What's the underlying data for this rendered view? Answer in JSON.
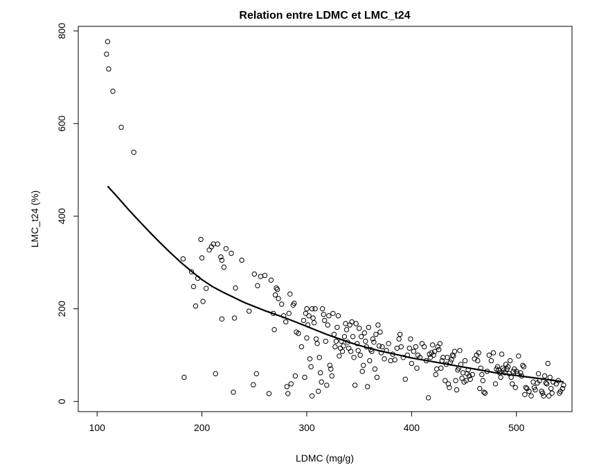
{
  "chart_data": {
    "type": "scatter",
    "title": "Relation entre LDMC et LMC_t24",
    "xlabel": "LDMC (mg/g)",
    "ylabel": "LMC_t24 (%)",
    "xlim": [
      82,
      553
    ],
    "ylim": [
      -22,
      810
    ],
    "xticks": [
      "100",
      "200",
      "300",
      "400",
      "500"
    ],
    "yticks": [
      "0",
      "200",
      "400",
      "600",
      "800"
    ],
    "grid": false,
    "legend": "none",
    "colors": {
      "points": "#000000",
      "curve": "#000000",
      "frame": "#000000"
    },
    "points": [
      [
        109,
        750
      ],
      [
        110,
        777
      ],
      [
        111,
        718
      ],
      [
        115,
        670
      ],
      [
        123,
        592
      ],
      [
        135,
        538
      ],
      [
        182,
        308
      ],
      [
        183,
        52
      ],
      [
        190,
        280
      ],
      [
        192,
        248
      ],
      [
        194,
        206
      ],
      [
        196,
        266
      ],
      [
        199,
        350
      ],
      [
        200,
        310
      ],
      [
        201,
        216
      ],
      [
        204,
        244
      ],
      [
        207,
        327
      ],
      [
        209,
        334
      ],
      [
        211,
        340
      ],
      [
        213,
        60
      ],
      [
        215,
        340
      ],
      [
        218,
        312
      ],
      [
        219,
        305
      ],
      [
        219,
        178
      ],
      [
        221,
        290
      ],
      [
        223,
        330
      ],
      [
        228,
        320
      ],
      [
        230,
        20
      ],
      [
        231,
        180
      ],
      [
        232,
        245
      ],
      [
        238,
        305
      ],
      [
        245,
        195
      ],
      [
        249,
        36
      ],
      [
        250,
        275
      ],
      [
        252,
        60
      ],
      [
        253,
        250
      ],
      [
        256,
        270
      ],
      [
        260,
        272
      ],
      [
        264,
        17
      ],
      [
        266,
        262
      ],
      [
        268,
        190
      ],
      [
        269,
        155
      ],
      [
        270,
        230
      ],
      [
        271,
        245
      ],
      [
        272,
        242
      ],
      [
        273,
        222
      ],
      [
        276,
        210
      ],
      [
        278,
        185
      ],
      [
        280,
        172
      ],
      [
        281,
        32
      ],
      [
        282,
        17
      ],
      [
        283,
        190
      ],
      [
        284,
        232
      ],
      [
        285,
        38
      ],
      [
        287,
        208
      ],
      [
        288,
        212
      ],
      [
        289,
        55
      ],
      [
        290,
        150
      ],
      [
        292,
        147
      ],
      [
        295,
        118
      ],
      [
        297,
        175
      ],
      [
        298,
        52
      ],
      [
        299,
        190
      ],
      [
        300,
        200
      ],
      [
        300,
        137
      ],
      [
        301,
        165
      ],
      [
        302,
        185
      ],
      [
        303,
        92
      ],
      [
        304,
        75
      ],
      [
        305,
        200
      ],
      [
        305,
        12
      ],
      [
        306,
        180
      ],
      [
        307,
        170
      ],
      [
        308,
        200
      ],
      [
        309,
        135
      ],
      [
        310,
        125
      ],
      [
        311,
        22
      ],
      [
        312,
        95
      ],
      [
        313,
        62
      ],
      [
        314,
        42
      ],
      [
        315,
        200
      ],
      [
        316,
        188
      ],
      [
        317,
        175
      ],
      [
        318,
        130
      ],
      [
        319,
        35
      ],
      [
        320,
        165
      ],
      [
        321,
        185
      ],
      [
        322,
        78
      ],
      [
        323,
        70
      ],
      [
        324,
        55
      ],
      [
        325,
        190
      ],
      [
        326,
        145
      ],
      [
        327,
        118
      ],
      [
        328,
        130
      ],
      [
        329,
        160
      ],
      [
        330,
        185
      ],
      [
        331,
        98
      ],
      [
        332,
        115
      ],
      [
        333,
        130
      ],
      [
        334,
        108
      ],
      [
        335,
        120
      ],
      [
        336,
        140
      ],
      [
        337,
        168
      ],
      [
        338,
        155
      ],
      [
        339,
        128
      ],
      [
        340,
        115
      ],
      [
        341,
        165
      ],
      [
        342,
        108
      ],
      [
        343,
        172
      ],
      [
        344,
        140
      ],
      [
        345,
        95
      ],
      [
        346,
        35
      ],
      [
        347,
        168
      ],
      [
        348,
        125
      ],
      [
        349,
        110
      ],
      [
        350,
        158
      ],
      [
        351,
        100
      ],
      [
        352,
        140
      ],
      [
        353,
        65
      ],
      [
        354,
        78
      ],
      [
        355,
        148
      ],
      [
        356,
        130
      ],
      [
        357,
        118
      ],
      [
        358,
        32
      ],
      [
        359,
        160
      ],
      [
        360,
        88
      ],
      [
        361,
        112
      ],
      [
        362,
        108
      ],
      [
        363,
        135
      ],
      [
        364,
        128
      ],
      [
        365,
        70
      ],
      [
        366,
        145
      ],
      [
        367,
        52
      ],
      [
        368,
        165
      ],
      [
        369,
        120
      ],
      [
        370,
        150
      ],
      [
        371,
        105
      ],
      [
        372,
        118
      ],
      [
        374,
        92
      ],
      [
        376,
        110
      ],
      [
        378,
        125
      ],
      [
        380,
        88
      ],
      [
        382,
        102
      ],
      [
        384,
        90
      ],
      [
        386,
        115
      ],
      [
        388,
        135
      ],
      [
        389,
        145
      ],
      [
        390,
        118
      ],
      [
        392,
        95
      ],
      [
        394,
        48
      ],
      [
        396,
        100
      ],
      [
        398,
        115
      ],
      [
        399,
        135
      ],
      [
        400,
        82
      ],
      [
        402,
        108
      ],
      [
        404,
        118
      ],
      [
        405,
        72
      ],
      [
        406,
        100
      ],
      [
        408,
        95
      ],
      [
        410,
        125
      ],
      [
        412,
        118
      ],
      [
        414,
        88
      ],
      [
        416,
        8
      ],
      [
        417,
        102
      ],
      [
        418,
        95
      ],
      [
        419,
        105
      ],
      [
        420,
        122
      ],
      [
        421,
        100
      ],
      [
        422,
        108
      ],
      [
        423,
        58
      ],
      [
        424,
        70
      ],
      [
        425,
        118
      ],
      [
        426,
        112
      ],
      [
        427,
        125
      ],
      [
        428,
        72
      ],
      [
        429,
        88
      ],
      [
        430,
        95
      ],
      [
        432,
        45
      ],
      [
        433,
        80
      ],
      [
        434,
        95
      ],
      [
        435,
        38
      ],
      [
        436,
        30
      ],
      [
        437,
        85
      ],
      [
        438,
        90
      ],
      [
        439,
        100
      ],
      [
        440,
        98
      ],
      [
        441,
        108
      ],
      [
        442,
        45
      ],
      [
        443,
        25
      ],
      [
        444,
        68
      ],
      [
        445,
        72
      ],
      [
        446,
        110
      ],
      [
        447,
        80
      ],
      [
        448,
        50
      ],
      [
        449,
        62
      ],
      [
        450,
        42
      ],
      [
        451,
        88
      ],
      [
        452,
        45
      ],
      [
        453,
        60
      ],
      [
        454,
        68
      ],
      [
        455,
        55
      ],
      [
        456,
        48
      ],
      [
        458,
        58
      ],
      [
        460,
        92
      ],
      [
        462,
        100
      ],
      [
        463,
        88
      ],
      [
        464,
        105
      ],
      [
        465,
        28
      ],
      [
        466,
        72
      ],
      [
        467,
        58
      ],
      [
        468,
        45
      ],
      [
        469,
        20
      ],
      [
        470,
        18
      ],
      [
        472,
        65
      ],
      [
        474,
        100
      ],
      [
        476,
        88
      ],
      [
        478,
        105
      ],
      [
        480,
        38
      ],
      [
        481,
        70
      ],
      [
        482,
        75
      ],
      [
        483,
        68
      ],
      [
        484,
        62
      ],
      [
        485,
        52
      ],
      [
        486,
        102
      ],
      [
        487,
        72
      ],
      [
        488,
        68
      ],
      [
        489,
        62
      ],
      [
        490,
        80
      ],
      [
        491,
        70
      ],
      [
        492,
        75
      ],
      [
        493,
        60
      ],
      [
        494,
        88
      ],
      [
        495,
        52
      ],
      [
        496,
        38
      ],
      [
        497,
        65
      ],
      [
        498,
        70
      ],
      [
        499,
        30
      ],
      [
        500,
        65
      ],
      [
        501,
        60
      ],
      [
        502,
        98
      ],
      [
        504,
        62
      ],
      [
        505,
        55
      ],
      [
        506,
        78
      ],
      [
        507,
        75
      ],
      [
        508,
        15
      ],
      [
        509,
        30
      ],
      [
        510,
        28
      ],
      [
        512,
        22
      ],
      [
        514,
        12
      ],
      [
        516,
        42
      ],
      [
        517,
        30
      ],
      [
        518,
        25
      ],
      [
        520,
        40
      ],
      [
        521,
        60
      ],
      [
        522,
        45
      ],
      [
        524,
        22
      ],
      [
        525,
        18
      ],
      [
        526,
        12
      ],
      [
        527,
        55
      ],
      [
        528,
        40
      ],
      [
        529,
        38
      ],
      [
        530,
        82
      ],
      [
        531,
        12
      ],
      [
        532,
        52
      ],
      [
        533,
        28
      ],
      [
        534,
        18
      ],
      [
        535,
        42
      ],
      [
        538,
        38
      ],
      [
        540,
        45
      ],
      [
        541,
        18
      ],
      [
        542,
        22
      ],
      [
        544,
        28
      ],
      [
        545,
        35
      ]
    ],
    "fit_curve": [
      [
        110,
        465
      ],
      [
        120,
        440
      ],
      [
        130,
        414
      ],
      [
        140,
        390
      ],
      [
        150,
        366
      ],
      [
        160,
        343
      ],
      [
        170,
        321
      ],
      [
        180,
        300
      ],
      [
        190,
        281
      ],
      [
        200,
        263
      ],
      [
        210,
        248
      ],
      [
        220,
        236
      ],
      [
        230,
        225
      ],
      [
        240,
        214
      ],
      [
        250,
        205
      ],
      [
        260,
        196
      ],
      [
        270,
        188
      ],
      [
        280,
        180
      ],
      [
        290,
        171
      ],
      [
        300,
        162
      ],
      [
        310,
        153
      ],
      [
        320,
        144
      ],
      [
        330,
        136
      ],
      [
        340,
        128
      ],
      [
        350,
        121
      ],
      [
        360,
        115
      ],
      [
        370,
        109
      ],
      [
        380,
        104
      ],
      [
        390,
        99
      ],
      [
        400,
        94
      ],
      [
        410,
        90
      ],
      [
        420,
        86
      ],
      [
        430,
        82
      ],
      [
        440,
        78
      ],
      [
        450,
        74
      ],
      [
        460,
        70
      ],
      [
        470,
        66
      ],
      [
        480,
        62
      ],
      [
        490,
        59
      ],
      [
        500,
        56
      ],
      [
        510,
        53
      ],
      [
        520,
        50
      ],
      [
        530,
        47
      ],
      [
        540,
        44
      ],
      [
        545,
        42
      ]
    ]
  }
}
